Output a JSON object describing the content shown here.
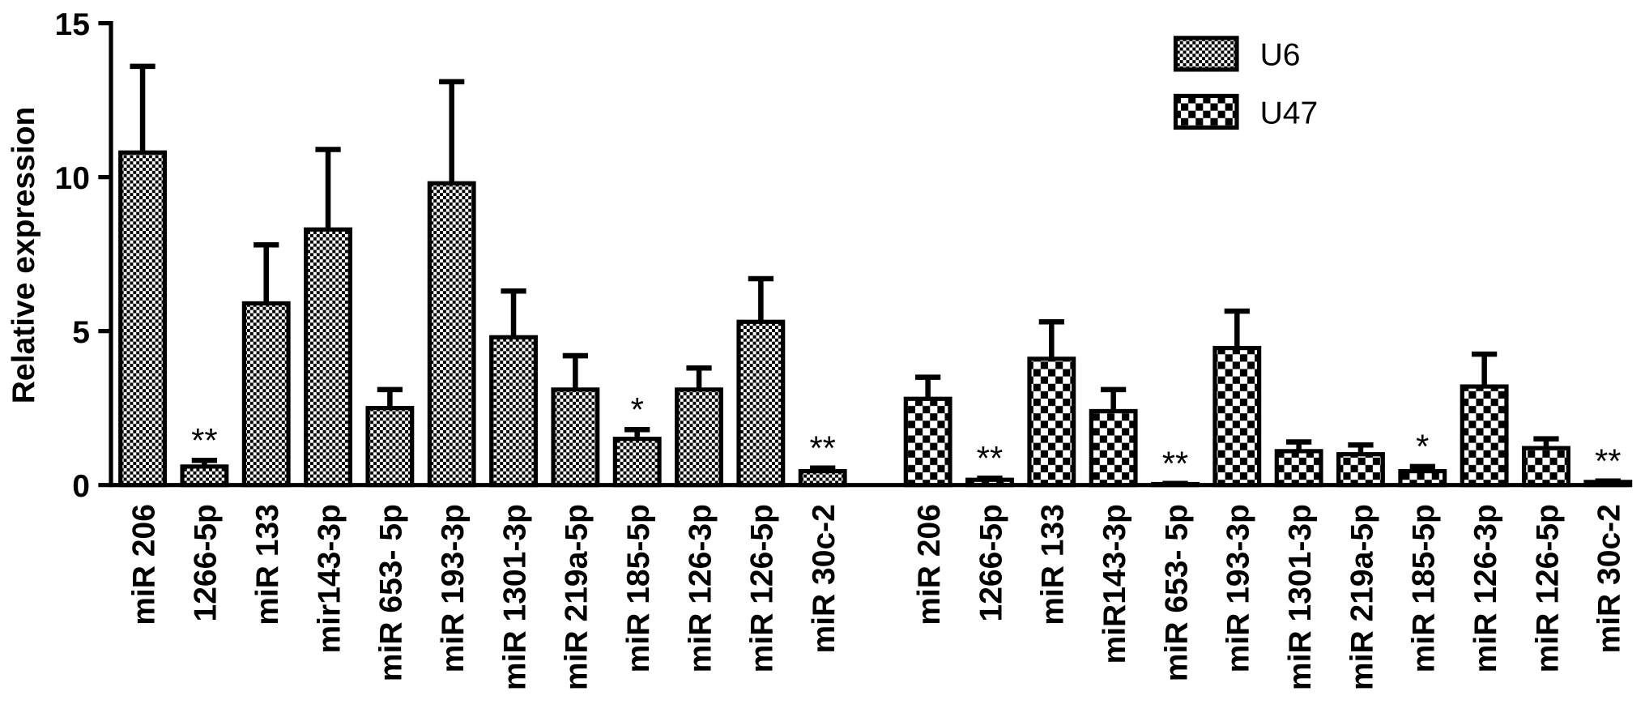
{
  "chart_data": {
    "type": "bar",
    "y_label": "Relative expression",
    "ylim": [
      0,
      15
    ],
    "yticks": [
      0,
      5,
      10,
      15
    ],
    "legend": "upper right",
    "series": [
      {
        "name": "U6",
        "pattern": "fine-check",
        "categories": [
          "miR 206",
          "1266-5p",
          "miR 133",
          "mir143-3p",
          "miR 653- 5p",
          "miR 193-3p",
          "miR 1301-3p",
          "miR 219a-5p",
          "miR 185-5p",
          "miR 126-3p",
          "miR 126-5p",
          "miR 30c-2"
        ],
        "values": [
          10.8,
          0.6,
          5.9,
          8.3,
          2.5,
          9.8,
          4.8,
          3.1,
          1.5,
          3.1,
          5.3,
          0.45
        ],
        "errors": [
          2.8,
          0.2,
          1.9,
          2.6,
          0.6,
          3.3,
          1.5,
          1.1,
          0.3,
          0.7,
          1.4,
          0.1
        ],
        "annotations": [
          null,
          "**",
          null,
          null,
          null,
          null,
          null,
          null,
          "*",
          null,
          null,
          "**"
        ]
      },
      {
        "name": "U47",
        "pattern": "coarse-check",
        "categories": [
          "miR 206",
          "1266-5p",
          "miR 133",
          "miR143-3p",
          "miR 653- 5p",
          "miR 193-3p",
          "miR 1301-3p",
          "miR 219a-5p",
          "miR 185-5p",
          "miR 126-3p",
          "miR 126-5p",
          "miR 30c-2"
        ],
        "values": [
          2.8,
          0.17,
          4.1,
          2.4,
          0.03,
          4.45,
          1.1,
          1.0,
          0.45,
          3.2,
          1.2,
          0.1
        ],
        "errors": [
          0.7,
          0.05,
          1.2,
          0.7,
          0.02,
          1.2,
          0.3,
          0.3,
          0.15,
          1.05,
          0.3,
          0.03
        ],
        "annotations": [
          null,
          "**",
          null,
          null,
          "**",
          null,
          null,
          null,
          "*",
          null,
          null,
          "**"
        ]
      }
    ]
  }
}
